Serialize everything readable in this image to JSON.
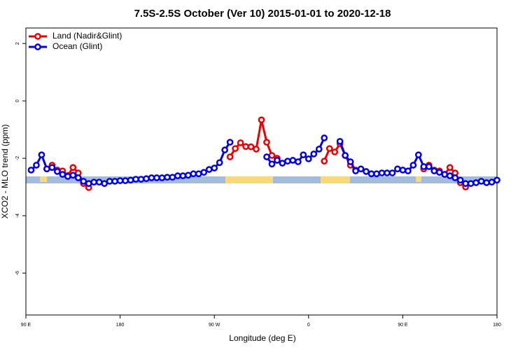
{
  "chart_data": {
    "type": "line",
    "title": "7.5S-2.5S October (Ver 10)   2015-01-01 to 2020-12-18",
    "xlabel": "Longitude (deg E)",
    "ylabel": "XCO2 - MLO trend (ppm)",
    "x": [
      95,
      100,
      105,
      110,
      115,
      120,
      125,
      130,
      135,
      140,
      145,
      150,
      155,
      160,
      165,
      170,
      175,
      180,
      185,
      190,
      195,
      200,
      205,
      210,
      215,
      220,
      225,
      230,
      235,
      240,
      245,
      250,
      255,
      260,
      265,
      270,
      275,
      280,
      285,
      290,
      295,
      300,
      305,
      310,
      315,
      320,
      325,
      330,
      335,
      340,
      345,
      350,
      355,
      360,
      365,
      370,
      375,
      380,
      385,
      390,
      395,
      400,
      405,
      410,
      415,
      420,
      425,
      430,
      435,
      440,
      445,
      450,
      455,
      460,
      465,
      470,
      475,
      480,
      485,
      490,
      495,
      500,
      505,
      510,
      515,
      520,
      525,
      530,
      535,
      540
    ],
    "series": [
      {
        "name": "Land (Nadir&Glint)",
        "color": "#ee0000",
        "values": [
          null,
          null,
          null,
          -2.37,
          -2.24,
          -2.41,
          -2.44,
          -2.6,
          -2.32,
          -2.51,
          -2.88,
          -3.02,
          null,
          null,
          null,
          null,
          null,
          null,
          null,
          null,
          null,
          null,
          null,
          null,
          null,
          null,
          null,
          null,
          null,
          null,
          null,
          null,
          null,
          null,
          null,
          null,
          null,
          null,
          -1.95,
          -1.66,
          -1.46,
          -1.59,
          -1.6,
          -1.68,
          -0.66,
          -1.44,
          -1.9,
          -2.0,
          null,
          null,
          null,
          null,
          null,
          null,
          null,
          null,
          -2.1,
          -1.66,
          -1.78,
          -1.49,
          -1.9,
          -2.24,
          -2.41,
          null,
          null,
          null,
          null,
          null,
          null,
          null,
          null,
          null,
          null,
          null,
          null,
          -2.37,
          -2.24,
          -2.41,
          -2.44,
          -2.56,
          -2.32,
          -2.51,
          -2.85,
          -3.0,
          null,
          null,
          null,
          null,
          null,
          null
        ]
      },
      {
        "name": "Ocean (Glint)",
        "color": "#0000ee",
        "values": [
          -2.41,
          -2.24,
          -1.88,
          -2.37,
          -2.32,
          -2.46,
          -2.56,
          -2.63,
          -2.59,
          -2.68,
          -2.8,
          -2.88,
          -2.83,
          -2.83,
          -2.88,
          -2.8,
          -2.8,
          -2.78,
          -2.78,
          -2.76,
          -2.73,
          -2.73,
          -2.71,
          -2.68,
          -2.68,
          -2.68,
          -2.66,
          -2.66,
          -2.61,
          -2.61,
          -2.59,
          -2.54,
          -2.54,
          -2.49,
          -2.39,
          -2.34,
          -2.15,
          -1.71,
          -1.44,
          null,
          null,
          null,
          null,
          null,
          null,
          -1.95,
          -2.2,
          -2.07,
          -2.17,
          -2.1,
          -2.07,
          -2.12,
          -1.88,
          -2.02,
          -1.85,
          -1.68,
          -1.29,
          null,
          null,
          -1.41,
          -1.9,
          -2.12,
          -2.44,
          -2.37,
          -2.46,
          -2.54,
          -2.54,
          -2.51,
          -2.51,
          -2.51,
          -2.37,
          -2.41,
          -2.44,
          -2.24,
          -1.88,
          -2.29,
          -2.29,
          -2.44,
          -2.49,
          -2.56,
          -2.61,
          -2.68,
          -2.76,
          -2.88,
          -2.88,
          -2.85,
          -2.8,
          -2.85,
          -2.83,
          -2.76
        ]
      }
    ],
    "xlim": [
      90,
      540
    ],
    "xticks": [
      {
        "value": 90,
        "label": "90 E"
      },
      180,
      {
        "value": 270,
        "label": "90 W"
      },
      {
        "value": 360,
        "label": "0"
      },
      {
        "value": 450,
        "label": "90 E"
      },
      {
        "value": 540,
        "label": "180"
      }
    ],
    "ylim": [
      -7.46,
      2.54
    ],
    "yticks": [
      -6,
      -4,
      -2,
      0,
      2
    ],
    "legend": "upper left"
  }
}
